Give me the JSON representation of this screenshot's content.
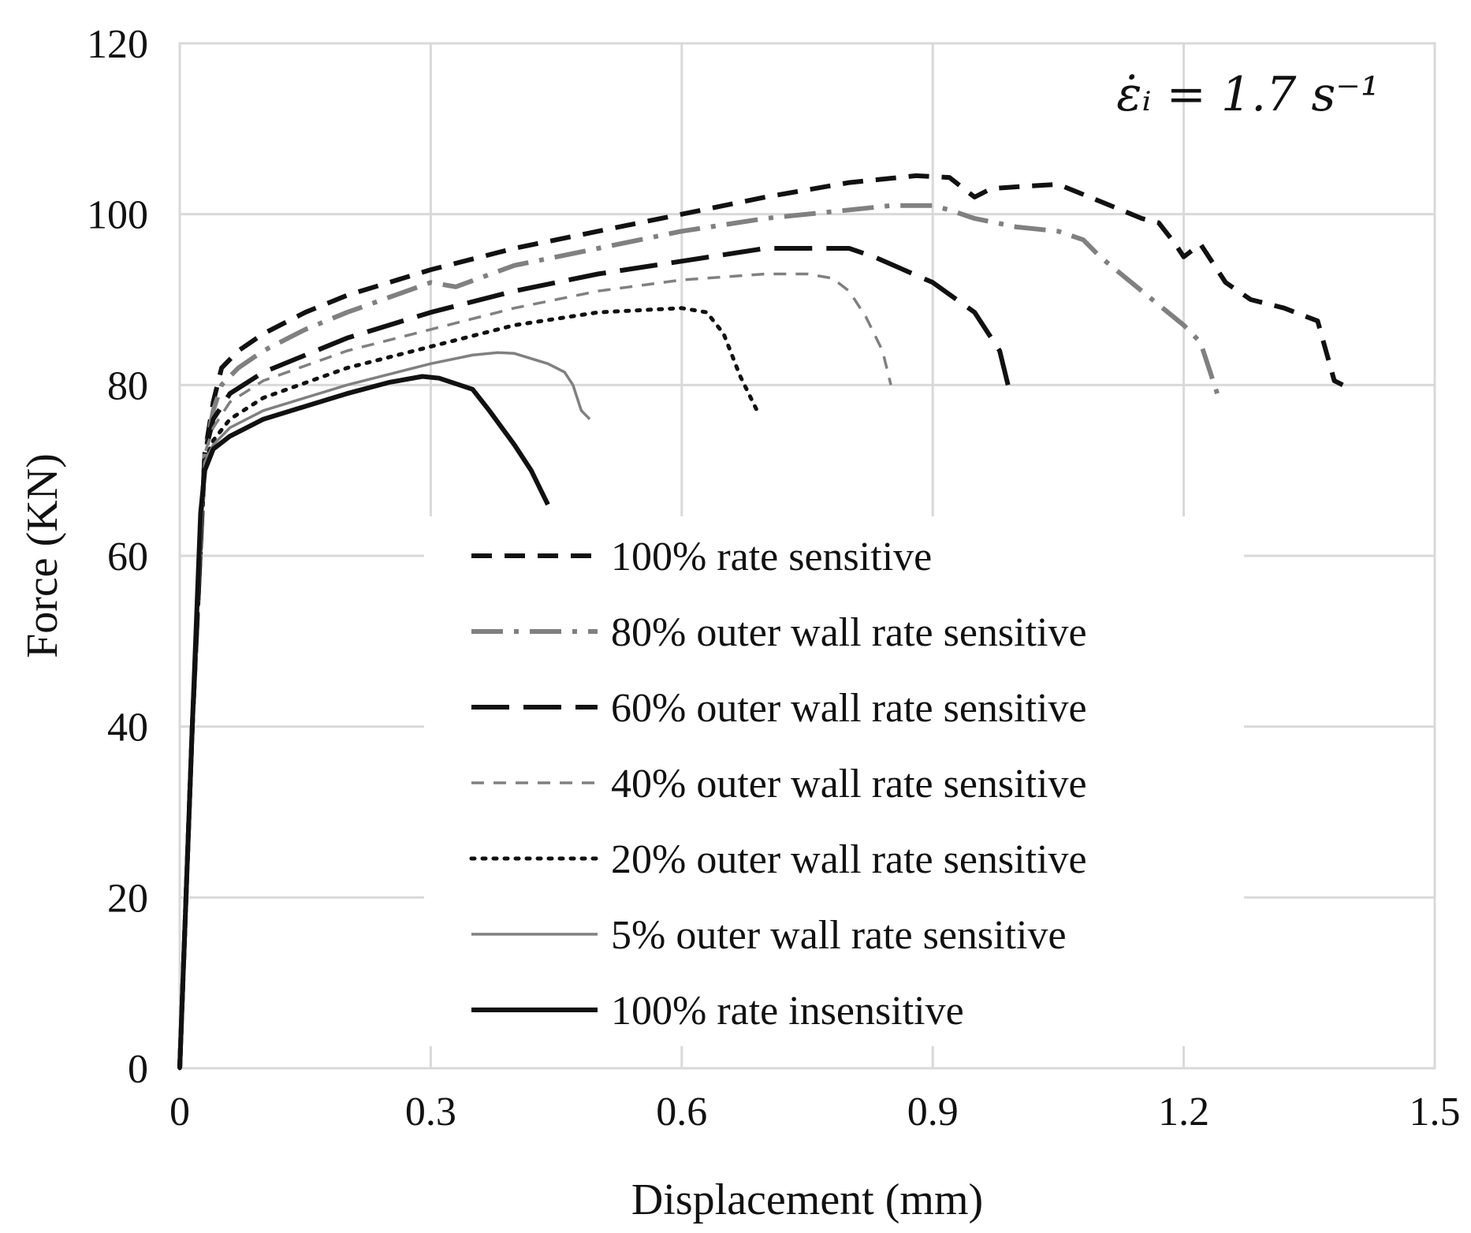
{
  "chart_data": {
    "type": "line",
    "title": "",
    "xlabel": "Displacement (mm)",
    "ylabel": "Force (KN)",
    "xlim": [
      0,
      1.5
    ],
    "ylim": [
      0,
      120
    ],
    "x_ticks": [
      "0",
      "0.3",
      "0.6",
      "0.9",
      "1.2",
      "1.5"
    ],
    "y_ticks": [
      "0",
      "20",
      "40",
      "60",
      "80",
      "100",
      "120"
    ],
    "grid": true,
    "legend_position": "center-right",
    "annotation": "ε̇ᵢ = 1.7 s⁻¹",
    "series": [
      {
        "name": "100% rate sensitive",
        "color": "#111111",
        "style": "dashed",
        "points": [
          [
            0,
            0
          ],
          [
            0.015,
            40
          ],
          [
            0.03,
            72
          ],
          [
            0.04,
            78
          ],
          [
            0.05,
            82
          ],
          [
            0.07,
            84
          ],
          [
            0.1,
            86
          ],
          [
            0.15,
            88.5
          ],
          [
            0.2,
            90.5
          ],
          [
            0.3,
            93.5
          ],
          [
            0.4,
            96
          ],
          [
            0.5,
            98
          ],
          [
            0.6,
            100
          ],
          [
            0.7,
            102
          ],
          [
            0.8,
            103.7
          ],
          [
            0.88,
            104.5
          ],
          [
            0.92,
            104.3
          ],
          [
            0.95,
            102
          ],
          [
            0.97,
            103
          ],
          [
            1.0,
            103.2
          ],
          [
            1.05,
            103.5
          ],
          [
            1.1,
            101.5
          ],
          [
            1.15,
            99.5
          ],
          [
            1.17,
            99
          ],
          [
            1.19,
            96.5
          ],
          [
            1.2,
            95
          ],
          [
            1.22,
            96.5
          ],
          [
            1.25,
            92
          ],
          [
            1.28,
            90
          ],
          [
            1.32,
            89
          ],
          [
            1.36,
            87.5
          ],
          [
            1.37,
            84
          ],
          [
            1.38,
            80.5
          ],
          [
            1.39,
            80
          ]
        ]
      },
      {
        "name": "80% outer wall rate sensitive",
        "color": "#808080",
        "style": "dashdot",
        "points": [
          [
            0,
            0
          ],
          [
            0.015,
            40
          ],
          [
            0.03,
            72
          ],
          [
            0.04,
            77
          ],
          [
            0.05,
            80
          ],
          [
            0.07,
            82
          ],
          [
            0.1,
            84
          ],
          [
            0.15,
            86.5
          ],
          [
            0.2,
            88.5
          ],
          [
            0.3,
            92
          ],
          [
            0.33,
            91.5
          ],
          [
            0.4,
            94
          ],
          [
            0.5,
            96
          ],
          [
            0.6,
            98
          ],
          [
            0.7,
            99.5
          ],
          [
            0.8,
            100.5
          ],
          [
            0.85,
            101
          ],
          [
            0.9,
            101
          ],
          [
            0.92,
            100.5
          ],
          [
            0.95,
            99.5
          ],
          [
            1.0,
            98.5
          ],
          [
            1.05,
            98
          ],
          [
            1.08,
            97
          ],
          [
            1.1,
            95
          ],
          [
            1.15,
            91
          ],
          [
            1.2,
            87
          ],
          [
            1.22,
            85
          ],
          [
            1.24,
            79
          ]
        ]
      },
      {
        "name": "60% outer wall rate sensitive",
        "color": "#111111",
        "style": "longdash",
        "points": [
          [
            0,
            0
          ],
          [
            0.015,
            40
          ],
          [
            0.03,
            72
          ],
          [
            0.04,
            76
          ],
          [
            0.06,
            79
          ],
          [
            0.1,
            81.5
          ],
          [
            0.2,
            85.5
          ],
          [
            0.3,
            88.5
          ],
          [
            0.4,
            91
          ],
          [
            0.5,
            93
          ],
          [
            0.6,
            94.5
          ],
          [
            0.7,
            96
          ],
          [
            0.8,
            96
          ],
          [
            0.83,
            95
          ],
          [
            0.9,
            92
          ],
          [
            0.95,
            88.5
          ],
          [
            0.98,
            84
          ],
          [
            0.99,
            80
          ]
        ]
      },
      {
        "name": "40% outer wall rate sensitive",
        "color": "#808080",
        "style": "shortdash",
        "points": [
          [
            0,
            0
          ],
          [
            0.015,
            40
          ],
          [
            0.03,
            72
          ],
          [
            0.04,
            75
          ],
          [
            0.06,
            78
          ],
          [
            0.1,
            80.5
          ],
          [
            0.2,
            84
          ],
          [
            0.3,
            86.5
          ],
          [
            0.4,
            89
          ],
          [
            0.5,
            91
          ],
          [
            0.6,
            92.3
          ],
          [
            0.7,
            93
          ],
          [
            0.75,
            93
          ],
          [
            0.78,
            92.5
          ],
          [
            0.8,
            91
          ],
          [
            0.82,
            88
          ],
          [
            0.84,
            84
          ],
          [
            0.85,
            80
          ]
        ]
      },
      {
        "name": "20% outer wall rate sensitive",
        "color": "#111111",
        "style": "dotted",
        "points": [
          [
            0,
            0
          ],
          [
            0.015,
            40
          ],
          [
            0.03,
            71
          ],
          [
            0.04,
            73.5
          ],
          [
            0.06,
            76
          ],
          [
            0.1,
            78.5
          ],
          [
            0.2,
            82
          ],
          [
            0.3,
            84.5
          ],
          [
            0.4,
            87
          ],
          [
            0.5,
            88.5
          ],
          [
            0.6,
            89
          ],
          [
            0.63,
            88.5
          ],
          [
            0.65,
            86
          ],
          [
            0.67,
            81
          ],
          [
            0.69,
            77
          ]
        ]
      },
      {
        "name": "5% outer wall rate sensitive",
        "color": "#808080",
        "style": "solid-thin",
        "points": [
          [
            0,
            0
          ],
          [
            0.015,
            40
          ],
          [
            0.03,
            71
          ],
          [
            0.04,
            73
          ],
          [
            0.06,
            75
          ],
          [
            0.1,
            77
          ],
          [
            0.2,
            80
          ],
          [
            0.3,
            82.5
          ],
          [
            0.35,
            83.5
          ],
          [
            0.38,
            83.8
          ],
          [
            0.4,
            83.7
          ],
          [
            0.44,
            82.5
          ],
          [
            0.46,
            81.5
          ],
          [
            0.47,
            80
          ],
          [
            0.48,
            77
          ],
          [
            0.49,
            76
          ]
        ]
      },
      {
        "name": "100% rate insensitive",
        "color": "#111111",
        "style": "solid",
        "points": [
          [
            0,
            0
          ],
          [
            0.015,
            40
          ],
          [
            0.025,
            65
          ],
          [
            0.03,
            70
          ],
          [
            0.04,
            72.5
          ],
          [
            0.06,
            74
          ],
          [
            0.1,
            76
          ],
          [
            0.2,
            79
          ],
          [
            0.25,
            80.3
          ],
          [
            0.29,
            81
          ],
          [
            0.31,
            80.8
          ],
          [
            0.35,
            79.5
          ],
          [
            0.37,
            77
          ],
          [
            0.4,
            73
          ],
          [
            0.42,
            70
          ],
          [
            0.44,
            66
          ]
        ]
      }
    ]
  }
}
